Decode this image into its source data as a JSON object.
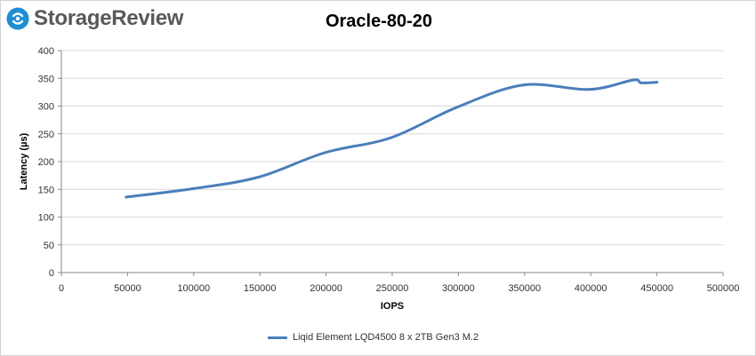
{
  "brand": {
    "name": "StorageReview",
    "logo_icon": "storagereview-logo-icon",
    "logo_color": "#1b8ed6"
  },
  "chart_data": {
    "type": "line",
    "title": "Oracle-80-20",
    "xlabel": "IOPS",
    "ylabel": "Latency (µs)",
    "xlim": [
      0,
      500000
    ],
    "ylim": [
      0,
      400
    ],
    "x_ticks": [
      0,
      50000,
      100000,
      150000,
      200000,
      250000,
      300000,
      350000,
      400000,
      450000,
      500000
    ],
    "y_ticks": [
      0,
      50,
      100,
      150,
      200,
      250,
      300,
      350,
      400
    ],
    "grid": "horizontal",
    "legend_position": "bottom",
    "series": [
      {
        "name": "Liqid Element LQD4500 8 x 2TB Gen3 M.2",
        "color": "#4a7ebb",
        "points": [
          [
            49000,
            136
          ],
          [
            99000,
            151
          ],
          [
            149000,
            172
          ],
          [
            199000,
            216
          ],
          [
            249000,
            243
          ],
          [
            299000,
            298
          ],
          [
            349000,
            338
          ],
          [
            399000,
            330
          ],
          [
            432000,
            347
          ],
          [
            438000,
            342
          ],
          [
            450000,
            343
          ]
        ]
      }
    ]
  }
}
